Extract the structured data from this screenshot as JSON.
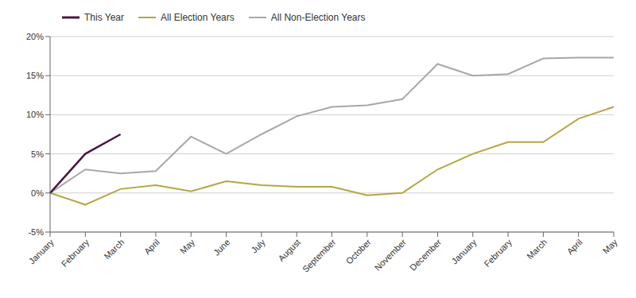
{
  "chart_data": {
    "type": "line",
    "categories": [
      "January",
      "February",
      "March",
      "April",
      "May",
      "June",
      "July",
      "August",
      "September",
      "October",
      "November",
      "December",
      "January",
      "February",
      "March",
      "April",
      "May"
    ],
    "series": [
      {
        "name": "This Year",
        "color": "#4a1942",
        "values": [
          0.0,
          5.0,
          7.5,
          null,
          null,
          null,
          null,
          null,
          null,
          null,
          null,
          null,
          null,
          null,
          null,
          null,
          null
        ]
      },
      {
        "name": "All Election Years",
        "color": "#b5a642",
        "values": [
          0.0,
          -1.5,
          0.5,
          1.0,
          0.2,
          1.5,
          1.0,
          0.8,
          0.8,
          -0.3,
          0.0,
          3.0,
          5.0,
          6.5,
          6.5,
          9.5,
          11.0
        ]
      },
      {
        "name": "All Non-Election Years",
        "color": "#a8a8a8",
        "values": [
          0.0,
          3.0,
          2.5,
          2.8,
          7.2,
          5.0,
          7.5,
          9.8,
          11.0,
          11.2,
          12.0,
          16.5,
          15.0,
          15.2,
          17.2,
          17.3,
          17.3
        ]
      }
    ],
    "ylim": [
      -5,
      20
    ],
    "yticks": [
      {
        "value": -5,
        "label": "-5%"
      },
      {
        "value": 0,
        "label": "0%"
      },
      {
        "value": 5,
        "label": "5%"
      },
      {
        "value": 10,
        "label": "10%"
      },
      {
        "value": 15,
        "label": "15%"
      },
      {
        "value": 20,
        "label": "20%"
      }
    ],
    "grid": true,
    "legend": "upper left"
  }
}
